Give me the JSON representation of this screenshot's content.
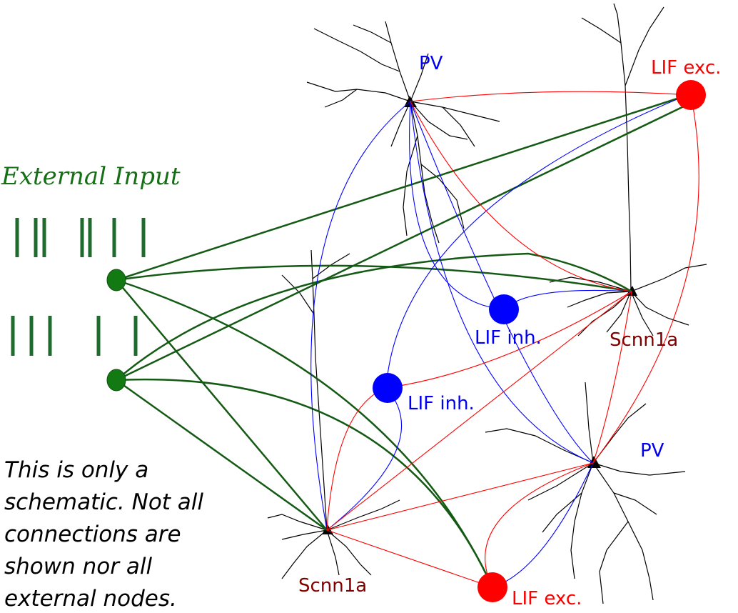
{
  "colors": {
    "excitatory": "#ff0000",
    "inhibitory": "#0000ff",
    "external": "#145a14",
    "pv_label": "#0000ee",
    "scnn1a_label": "#800000",
    "external_title": "#157015",
    "neuron_body": "#000000"
  },
  "external": {
    "title": "External Input"
  },
  "labels": {
    "pv_top": "PV",
    "lif_exc_top": "LIF exc.",
    "lif_inh_center": "LIF inh.",
    "scnn1a_right": "Scnn1a",
    "lif_inh_left": "LIF inh.",
    "pv_bottom": "PV",
    "scnn1a_bottom": "Scnn1a",
    "lif_exc_bottom": "LIF exc."
  },
  "note": {
    "text": "This is only a schematic. Not all connections are shown nor all external nodes."
  },
  "icons": [
    "pv-neuron-morphology-icon",
    "scnn1a-neuron-morphology-icon",
    "spike-train-icon"
  ]
}
